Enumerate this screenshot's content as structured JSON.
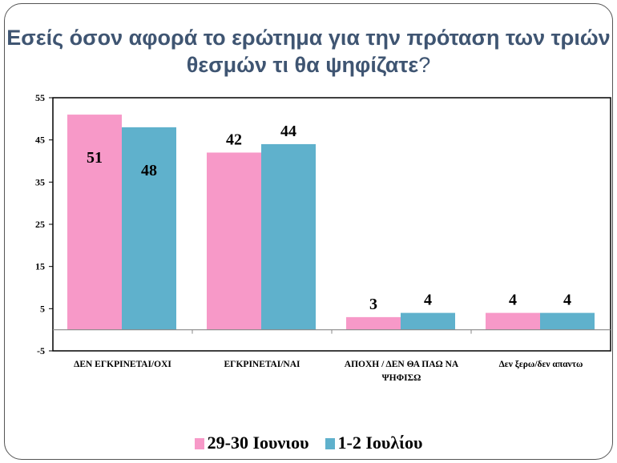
{
  "title": {
    "main": "Εσείς όσον αφορά το ερώτημα για την πρόταση των τριών θεσμών τι θα ψηφίζατε",
    "mark": "?"
  },
  "chart_data": {
    "type": "bar",
    "title": "Εσείς όσον αφορά το ερώτημα για την πρόταση των τριών θεσμών τι θα ψηφίζατε?",
    "categories": [
      "ΔΕΝ ΕΓΚΡΙΝΕΤΑΙ/ΟΧΙ",
      "ΕΓΚΡΙΝΕΤΑΙ/ΝΑΙ",
      "ΑΠΟΧΗ / ΔΕΝ ΘΑ ΠΑΩ ΝΑ ΨΗΦΙΣΩ",
      "Δεν ξερω/δεν απαντω"
    ],
    "series": [
      {
        "name": "29-30 Ιουνιου",
        "values": [
          51,
          42,
          3,
          4
        ],
        "color": "#f799c8"
      },
      {
        "name": "1-2 Ιουλίου",
        "values": [
          48,
          44,
          4,
          4
        ],
        "color": "#5fb1cc"
      }
    ],
    "ylim": [
      -5,
      55
    ],
    "yticks": [
      55,
      45,
      35,
      25,
      15,
      5,
      -5
    ],
    "xlabel": "",
    "ylabel": "",
    "grid": false,
    "legend": "bottom"
  }
}
